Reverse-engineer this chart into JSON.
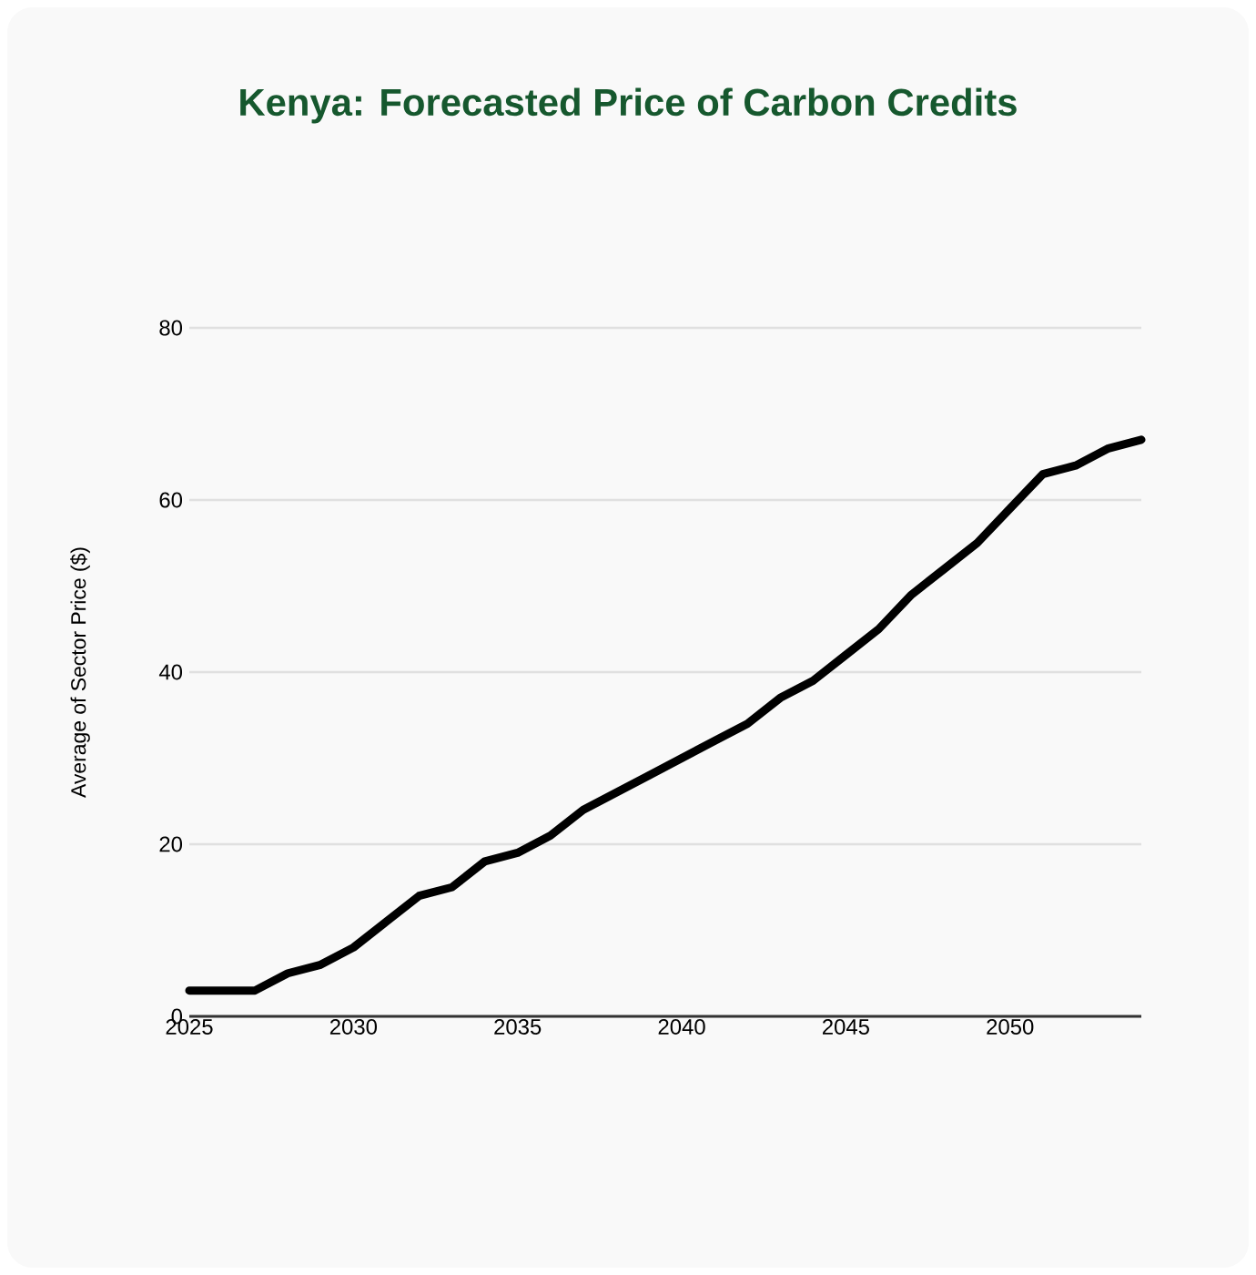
{
  "chart_data": {
    "type": "line",
    "title": "Kenya: Forecasted Price of Carbon Credits",
    "ylabel": "Average of Sector Price ($)",
    "x": [
      2025,
      2026,
      2027,
      2028,
      2029,
      2030,
      2031,
      2032,
      2033,
      2034,
      2035,
      2036,
      2037,
      2038,
      2039,
      2040,
      2041,
      2042,
      2043,
      2044,
      2045,
      2046,
      2047,
      2048,
      2049,
      2050,
      2051,
      2052,
      2053,
      2054
    ],
    "series": [
      {
        "color": "#000000",
        "values": [
          3,
          3,
          3,
          5,
          6,
          8,
          11,
          14,
          15,
          18,
          19,
          21,
          24,
          26,
          28,
          30,
          32,
          34,
          37,
          39,
          42,
          45,
          49,
          52,
          55,
          59,
          63,
          64,
          66,
          67
        ]
      }
    ],
    "xlim": [
      2025,
      2054
    ],
    "xticks": [
      2025,
      2030,
      2035,
      2040,
      2045,
      2050
    ],
    "ylim": [
      0,
      80
    ],
    "yticks": [
      0,
      20,
      40,
      60,
      80
    ],
    "grid": "y",
    "marker": "none",
    "line_style": "solid"
  }
}
